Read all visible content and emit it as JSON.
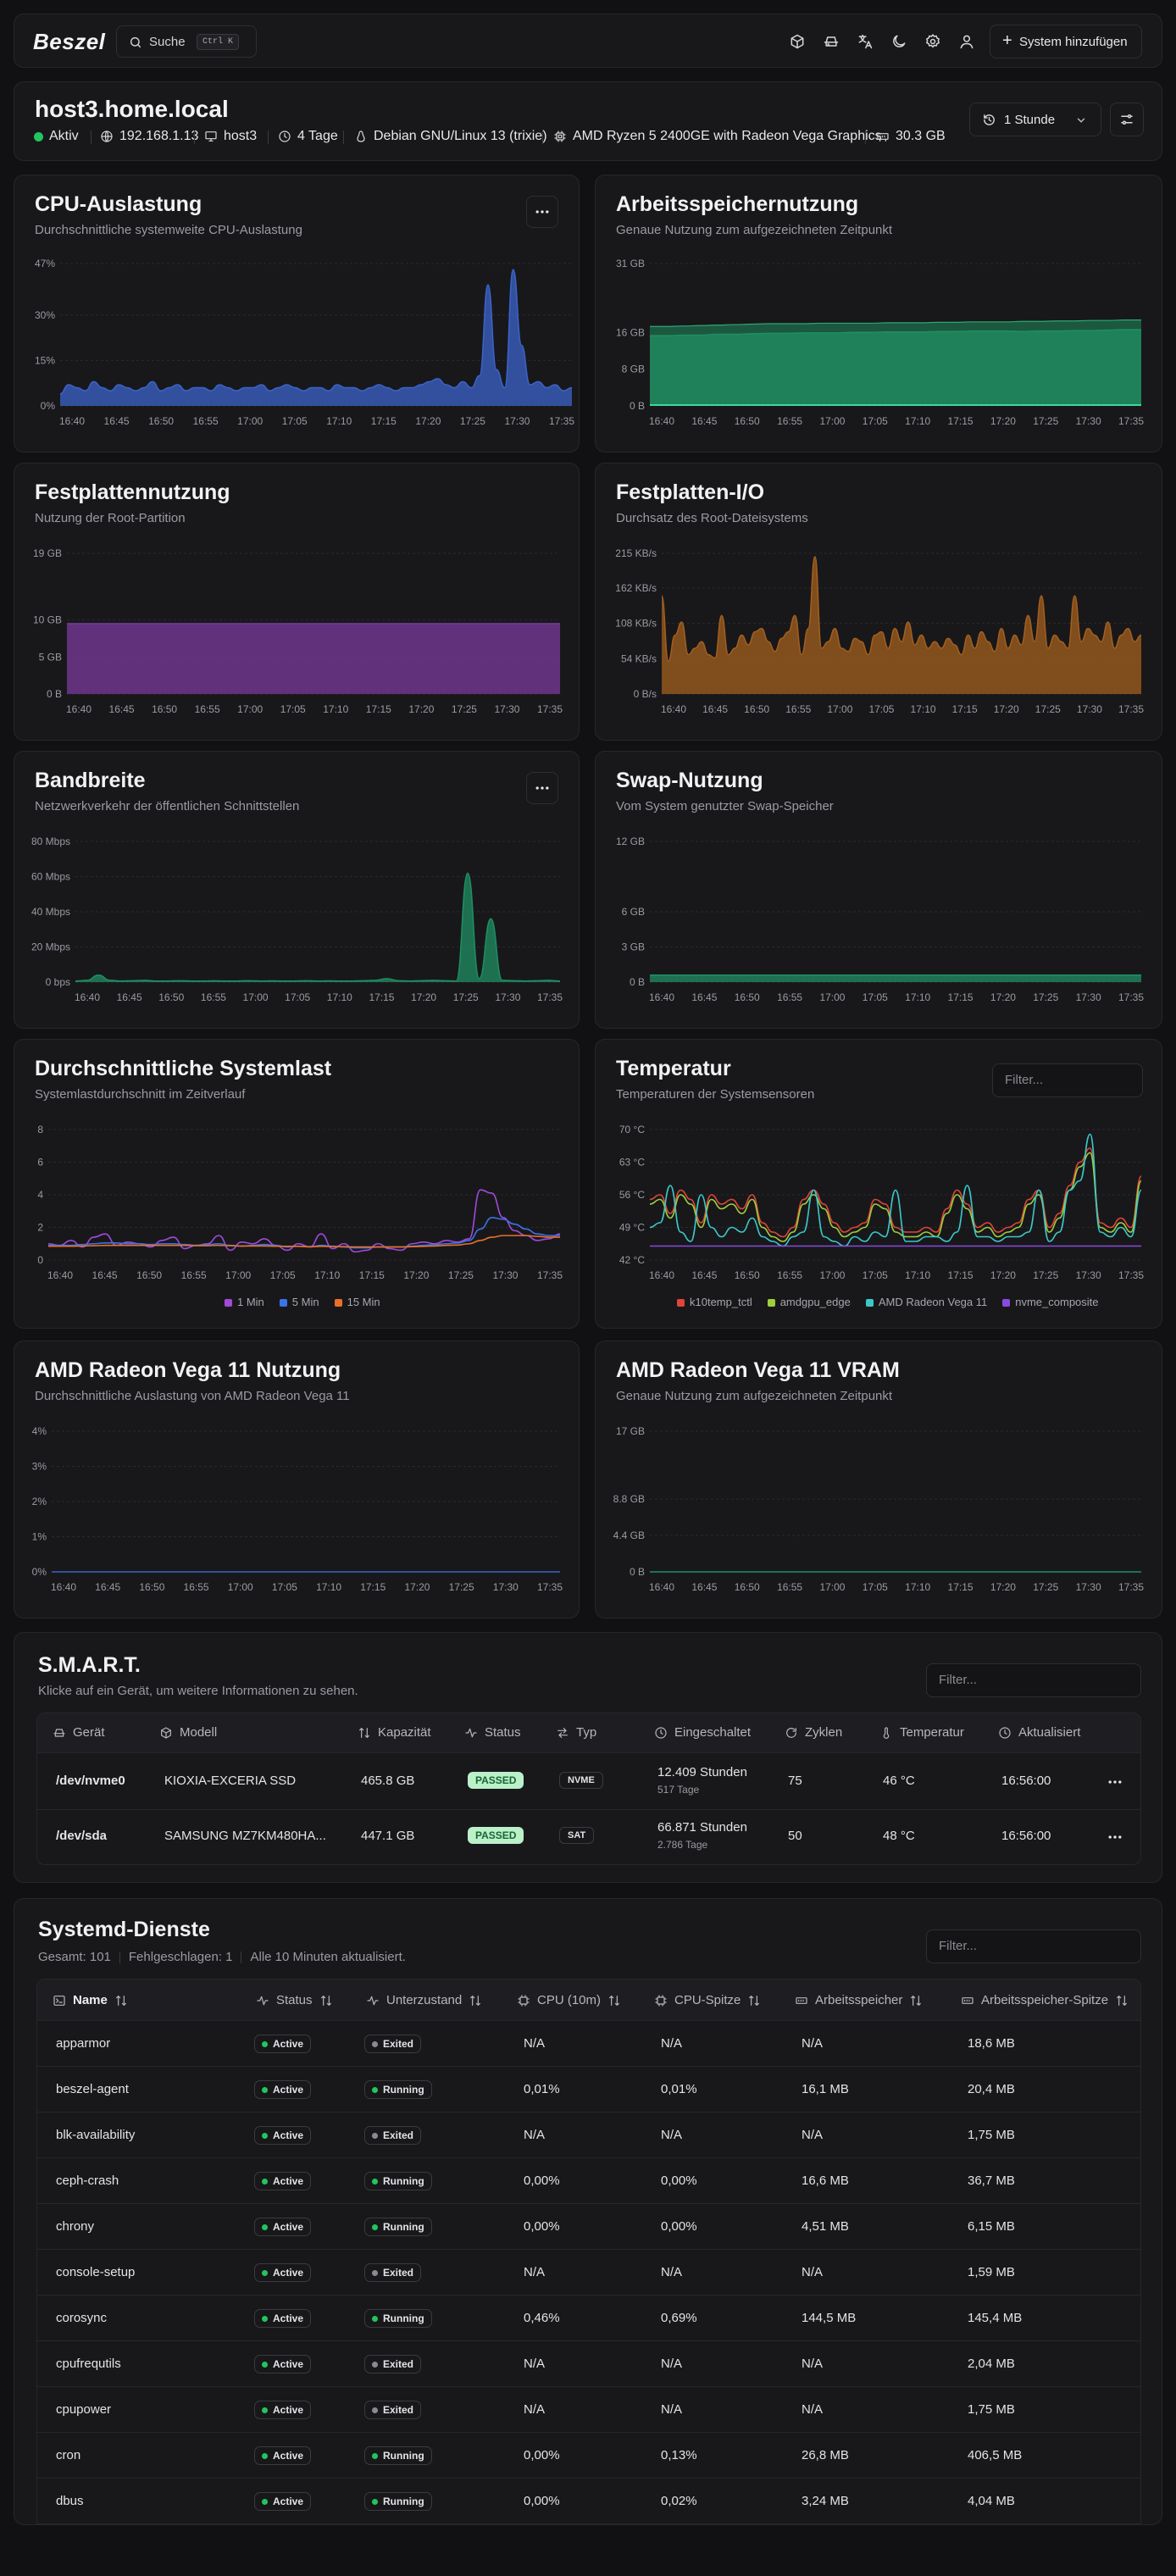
{
  "app": {
    "logo": "Beszel",
    "search_label": "Suche",
    "search_kbd": "Ctrl K",
    "add_system_label": "System hinzufügen"
  },
  "system": {
    "name": "host3.home.local",
    "status": "Aktiv",
    "ip": "192.168.1.13",
    "hostname": "host3",
    "uptime": "4 Tage",
    "os": "Debian GNU/Linux 13 (trixie)",
    "cpu": "AMD Ryzen 5 2400GE with Radeon Vega Graphics",
    "memory": "30.3 GB",
    "time_range": "1 Stunde"
  },
  "x_ticks": [
    "16:40",
    "16:45",
    "16:50",
    "16:55",
    "17:00",
    "17:05",
    "17:10",
    "17:15",
    "17:20",
    "17:25",
    "17:30",
    "17:35"
  ],
  "charts": {
    "cpu": {
      "title": "CPU-Auslastung",
      "subtitle": "Durchschnittliche systemweite CPU-Auslastung"
    },
    "mem": {
      "title": "Arbeitsspeichernutzung",
      "subtitle": "Genaue Nutzung zum aufgezeichneten Zeitpunkt"
    },
    "disk": {
      "title": "Festplattennutzung",
      "subtitle": "Nutzung der Root-Partition"
    },
    "io": {
      "title": "Festplatten-I/O",
      "subtitle": "Durchsatz des Root-Dateisystems"
    },
    "bw": {
      "title": "Bandbreite",
      "subtitle": "Netzwerkverkehr der öffentlichen Schnittstellen"
    },
    "swap": {
      "title": "Swap-Nutzung",
      "subtitle": "Vom System genutzter Swap-Speicher"
    },
    "load": {
      "title": "Durchschnittliche Systemlast",
      "subtitle": "Systemlastdurchschnitt im Zeitverlauf",
      "legend": [
        "1 Min",
        "5 Min",
        "15 Min"
      ]
    },
    "temp": {
      "title": "Temperatur",
      "subtitle": "Temperaturen der Systemsensoren",
      "filter_placeholder": "Filter...",
      "legend": [
        "k10temp_tctl",
        "amdgpu_edge",
        "AMD Radeon Vega 11",
        "nvme_composite"
      ]
    },
    "gpu": {
      "title": "AMD Radeon Vega 11 Nutzung",
      "subtitle": "Durchschnittliche Auslastung von AMD Radeon Vega 11"
    },
    "vram": {
      "title": "AMD Radeon Vega 11 VRAM",
      "subtitle": "Genaue Nutzung zum aufgezeichneten Zeitpunkt"
    }
  },
  "chart_data": [
    {
      "id": "cpu",
      "type": "area",
      "color": "#3b63c9",
      "ylim": [
        0,
        47
      ],
      "y_ticks": [
        "0%",
        "15%",
        "30%",
        "47%"
      ],
      "y_tick_values": [
        0,
        15,
        30,
        47
      ],
      "values": [
        4,
        7,
        6,
        5,
        8,
        6,
        5,
        7,
        6,
        5,
        6,
        8,
        5,
        6,
        7,
        5,
        6,
        6,
        5,
        7,
        6,
        5,
        6,
        6,
        7,
        5,
        6,
        7,
        6,
        5,
        6,
        6,
        5,
        7,
        6,
        6,
        5,
        6,
        7,
        6,
        5,
        6,
        6,
        7,
        8,
        9,
        7,
        6,
        8,
        6,
        10,
        40,
        12,
        6,
        45,
        20,
        7,
        8,
        6,
        7,
        5,
        6
      ]
    },
    {
      "id": "mem",
      "type": "area",
      "color": "#1f8f63",
      "ylim": [
        0,
        31
      ],
      "y_ticks": [
        "0 B",
        "8 GB",
        "16 GB",
        "31 GB"
      ],
      "y_tick_values": [
        0,
        8,
        16,
        31
      ],
      "values": [
        15.3,
        15.3,
        15.4,
        15.4,
        15.6,
        15.6,
        15.7,
        15.8,
        15.8,
        15.9,
        15.9,
        15.9,
        16.0,
        16.0,
        16.1,
        16.1,
        16.1,
        16.2,
        16.2,
        16.3,
        16.3,
        16.3,
        16.2,
        16.3,
        16.3,
        16.4,
        16.4,
        16.5,
        16.6,
        16.6
      ],
      "values_upper": [
        17.3,
        17.3,
        17.4,
        17.5,
        17.6,
        17.7,
        17.8,
        17.9,
        17.9,
        17.9,
        18.0,
        18.0,
        18.0,
        18.0,
        18.1,
        18.1,
        18.1,
        18.2,
        18.2,
        18.3,
        18.3,
        18.3,
        18.4,
        18.4,
        18.5,
        18.5,
        18.6,
        18.6,
        18.7,
        18.7
      ]
    },
    {
      "id": "disk",
      "type": "area",
      "color": "#7a3a9e",
      "ylim": [
        0,
        19
      ],
      "y_ticks": [
        "0 B",
        "5 GB",
        "10 GB",
        "19 GB"
      ],
      "y_tick_values": [
        0,
        5,
        10,
        19
      ],
      "values": [
        9.5,
        9.5,
        9.5,
        9.5,
        9.5,
        9.5,
        9.5,
        9.5,
        9.5,
        9.5
      ]
    },
    {
      "id": "io",
      "type": "area",
      "color": "#a35f1e",
      "ylim": [
        0,
        215
      ],
      "y_ticks": [
        "0 B/s",
        "54 KB/s",
        "108 KB/s",
        "162 KB/s",
        "215 KB/s"
      ],
      "y_tick_values": [
        0,
        54,
        108,
        162,
        215
      ],
      "values": [
        150,
        50,
        90,
        110,
        60,
        70,
        80,
        60,
        55,
        120,
        60,
        70,
        90,
        75,
        95,
        100,
        80,
        65,
        85,
        95,
        120,
        60,
        100,
        210,
        70,
        80,
        100,
        70,
        65,
        85,
        80,
        60,
        90,
        95,
        70,
        100,
        80,
        110,
        75,
        90,
        70,
        80,
        70,
        85,
        75,
        60,
        90,
        70,
        95,
        80,
        65,
        100,
        70,
        90,
        75,
        120,
        80,
        150,
        70,
        90,
        80,
        70,
        150,
        80,
        100,
        90,
        80,
        110,
        70,
        90,
        100,
        80,
        90
      ]
    },
    {
      "id": "bw",
      "type": "area",
      "color": "#1f8f63",
      "ylim": [
        0,
        80
      ],
      "y_ticks": [
        "0 bps",
        "20 Mbps",
        "40 Mbps",
        "60 Mbps",
        "80 Mbps"
      ],
      "y_tick_values": [
        0,
        20,
        40,
        60,
        80
      ],
      "values": [
        0.6,
        1,
        4,
        1,
        0.6,
        0.8,
        1,
        0.6,
        0.6,
        0.8,
        0.6,
        0.6,
        0.7,
        0.6,
        0.6,
        0.8,
        0.6,
        0.7,
        0.6,
        0.6,
        0.8,
        0.6,
        0.7,
        0.6,
        0.6,
        0.8,
        1,
        2,
        0.8,
        0.6,
        0.8,
        1,
        0.8,
        0.6,
        62,
        2,
        36,
        1,
        0.8,
        0.6,
        0.8,
        1,
        0.6
      ]
    },
    {
      "id": "swap",
      "type": "area",
      "color": "#1f8f63",
      "ylim": [
        0,
        12
      ],
      "y_ticks": [
        "0 B",
        "3 GB",
        "6 GB",
        "12 GB"
      ],
      "y_tick_values": [
        0,
        3,
        6,
        12
      ],
      "values": [
        0.6,
        0.6,
        0.6,
        0.6,
        0.6,
        0.6,
        0.6,
        0.6,
        0.6,
        0.6
      ]
    },
    {
      "id": "load",
      "type": "line",
      "ylim": [
        0,
        8
      ],
      "y_ticks": [
        "0",
        "2",
        "4",
        "6",
        "8"
      ],
      "y_tick_values": [
        0,
        2,
        4,
        6,
        8
      ],
      "series": [
        {
          "name": "1 Min",
          "color": "#a04ad9",
          "values": [
            1.0,
            0.9,
            1.2,
            0.8,
            1.4,
            1.6,
            0.9,
            1.1,
            1.0,
            0.8,
            1.2,
            1.4,
            0.7,
            0.9,
            1.0,
            1.5,
            0.6,
            1.1,
            1.0,
            1.3,
            0.9,
            0.6,
            1.0,
            0.8,
            1.6,
            0.7,
            1.0,
            0.5,
            0.6,
            1.0,
            0.7,
            0.6,
            1.0,
            1.1,
            1.0,
            1.2,
            1.1,
            1.3,
            4.3,
            4.1,
            2.6,
            1.8,
            1.5,
            1.2,
            1.3,
            1.6
          ]
        },
        {
          "name": "5 Min",
          "color": "#3b73e8",
          "values": [
            0.9,
            0.9,
            0.9,
            0.95,
            1.0,
            1.05,
            1.05,
            1.0,
            1.0,
            0.95,
            1.0,
            1.0,
            0.95,
            0.9,
            0.95,
            1.0,
            0.9,
            0.85,
            0.9,
            0.95,
            0.9,
            0.8,
            0.85,
            0.8,
            0.9,
            0.85,
            0.8,
            0.75,
            0.75,
            0.8,
            0.8,
            0.8,
            0.85,
            0.9,
            0.95,
            1.0,
            1.05,
            1.2,
            1.9,
            2.6,
            2.5,
            2.2,
            1.9,
            1.6,
            1.5,
            1.5
          ]
        },
        {
          "name": "15 Min",
          "color": "#e8712a",
          "values": [
            0.85,
            0.85,
            0.85,
            0.86,
            0.88,
            0.9,
            0.9,
            0.9,
            0.9,
            0.9,
            0.9,
            0.9,
            0.9,
            0.88,
            0.88,
            0.9,
            0.88,
            0.86,
            0.86,
            0.86,
            0.85,
            0.84,
            0.84,
            0.82,
            0.84,
            0.83,
            0.82,
            0.8,
            0.8,
            0.8,
            0.8,
            0.8,
            0.82,
            0.84,
            0.86,
            0.9,
            0.92,
            1.0,
            1.2,
            1.4,
            1.5,
            1.5,
            1.5,
            1.45,
            1.4,
            1.4
          ]
        }
      ]
    },
    {
      "id": "temp",
      "type": "line",
      "ylim": [
        42,
        70
      ],
      "y_ticks": [
        "42 °C",
        "49 °C",
        "56 °C",
        "63 °C",
        "70 °C"
      ],
      "y_tick_values": [
        42,
        49,
        56,
        63,
        70
      ],
      "series": [
        {
          "name": "k10temp_tctl",
          "color": "#e0453a",
          "values": [
            55,
            56,
            52,
            57,
            55,
            50,
            56,
            54,
            55,
            53,
            56,
            50,
            48,
            47,
            49,
            55,
            57,
            54,
            50,
            48,
            49,
            50,
            55,
            54,
            49,
            48,
            48,
            49,
            48,
            53,
            57,
            54,
            49,
            50,
            48,
            49,
            50,
            55,
            57,
            49,
            52,
            58,
            63,
            66,
            50,
            49,
            51,
            49,
            60
          ]
        },
        {
          "name": "amdgpu_edge",
          "color": "#9fce3a",
          "values": [
            54,
            55,
            51,
            56,
            54,
            49,
            55,
            53,
            54,
            52,
            55,
            49,
            47,
            46,
            48,
            54,
            56,
            53,
            49,
            47,
            48,
            49,
            54,
            53,
            48,
            47,
            47,
            48,
            47,
            52,
            56,
            53,
            48,
            49,
            47,
            48,
            49,
            54,
            56,
            48,
            51,
            57,
            62,
            65,
            49,
            48,
            50,
            48,
            59
          ]
        },
        {
          "name": "AMD Radeon Vega 11",
          "color": "#3cc8c8",
          "values": [
            49,
            50,
            58,
            48,
            46,
            56,
            49,
            47,
            49,
            48,
            51,
            47,
            46,
            45,
            47,
            48,
            57,
            47,
            46,
            45,
            47,
            46,
            48,
            47,
            57,
            46,
            46,
            47,
            47,
            46,
            48,
            58,
            47,
            47,
            46,
            47,
            47,
            48,
            57,
            46,
            48,
            57,
            59,
            69,
            48,
            47,
            49,
            47,
            57
          ]
        },
        {
          "name": "nvme_composite",
          "color": "#8a4ae0",
          "values": [
            45,
            45,
            45,
            45,
            45,
            45,
            45,
            45,
            45,
            45,
            45,
            45,
            45,
            45,
            45,
            45,
            45,
            45,
            45,
            45,
            45,
            45,
            45,
            45,
            45,
            45,
            45,
            45,
            45,
            45,
            45,
            45,
            45,
            45,
            45,
            45,
            45,
            45,
            45,
            45,
            45,
            45,
            45,
            45,
            45,
            45,
            45,
            45,
            45
          ]
        }
      ]
    },
    {
      "id": "gpu",
      "type": "area",
      "color": "#3b63c9",
      "ylim": [
        0,
        4
      ],
      "y_ticks": [
        "0%",
        "1%",
        "2%",
        "3%",
        "4%"
      ],
      "y_tick_values": [
        0,
        1,
        2,
        3,
        4
      ],
      "values": [
        0,
        0,
        0,
        0,
        0,
        0
      ]
    },
    {
      "id": "vram",
      "type": "area",
      "color": "#1f8f63",
      "ylim": [
        0,
        17
      ],
      "y_ticks": [
        "0 B",
        "4.4 GB",
        "8.8 GB",
        "17 GB"
      ],
      "y_tick_values": [
        0,
        4.4,
        8.8,
        17
      ],
      "values": [
        0,
        0,
        0,
        0,
        0,
        0
      ]
    }
  ],
  "smart": {
    "title": "S.M.A.R.T.",
    "subtitle": "Klicke auf ein Gerät, um weitere Informationen zu sehen.",
    "filter_placeholder": "Filter...",
    "headers": [
      "Gerät",
      "Modell",
      "Kapazität",
      "Status",
      "Typ",
      "Eingeschaltet",
      "Zyklen",
      "Temperatur",
      "Aktualisiert"
    ],
    "rows": [
      {
        "device": "/dev/nvme0",
        "model": "KIOXIA-EXCERIA SSD",
        "capacity": "465.8 GB",
        "status": "PASSED",
        "type": "NVME",
        "on_hours": "12.409 Stunden",
        "on_days": "517 Tage",
        "cycles": "75",
        "temp": "46 °C",
        "updated": "16:56:00"
      },
      {
        "device": "/dev/sda",
        "model": "SAMSUNG MZ7KM480HA...",
        "capacity": "447.1 GB",
        "status": "PASSED",
        "type": "SAT",
        "on_hours": "66.871 Stunden",
        "on_days": "2.786 Tage",
        "cycles": "50",
        "temp": "48 °C",
        "updated": "16:56:00"
      }
    ]
  },
  "systemd": {
    "title": "Systemd-Dienste",
    "summary_total": "Gesamt: 101",
    "summary_failed": "Fehlgeschlagen: 1",
    "summary_updated": "Alle 10 Minuten aktualisiert.",
    "filter_placeholder": "Filter...",
    "headers": [
      "Name",
      "Status",
      "Unterzustand",
      "CPU (10m)",
      "CPU-Spitze",
      "Arbeitsspeicher",
      "Arbeitsspeicher-Spitze"
    ],
    "rows": [
      {
        "name": "apparmor",
        "status": "Active",
        "sub": "Exited",
        "cpu": "N/A",
        "cpu_peak": "N/A",
        "mem": "N/A",
        "mem_peak": "18,6 MB"
      },
      {
        "name": "beszel-agent",
        "status": "Active",
        "sub": "Running",
        "cpu": "0,01%",
        "cpu_peak": "0,01%",
        "mem": "16,1 MB",
        "mem_peak": "20,4 MB"
      },
      {
        "name": "blk-availability",
        "status": "Active",
        "sub": "Exited",
        "cpu": "N/A",
        "cpu_peak": "N/A",
        "mem": "N/A",
        "mem_peak": "1,75 MB"
      },
      {
        "name": "ceph-crash",
        "status": "Active",
        "sub": "Running",
        "cpu": "0,00%",
        "cpu_peak": "0,00%",
        "mem": "16,6 MB",
        "mem_peak": "36,7 MB"
      },
      {
        "name": "chrony",
        "status": "Active",
        "sub": "Running",
        "cpu": "0,00%",
        "cpu_peak": "0,00%",
        "mem": "4,51 MB",
        "mem_peak": "6,15 MB"
      },
      {
        "name": "console-setup",
        "status": "Active",
        "sub": "Exited",
        "cpu": "N/A",
        "cpu_peak": "N/A",
        "mem": "N/A",
        "mem_peak": "1,59 MB"
      },
      {
        "name": "corosync",
        "status": "Active",
        "sub": "Running",
        "cpu": "0,46%",
        "cpu_peak": "0,69%",
        "mem": "144,5 MB",
        "mem_peak": "145,4 MB"
      },
      {
        "name": "cpufrequtils",
        "status": "Active",
        "sub": "Exited",
        "cpu": "N/A",
        "cpu_peak": "N/A",
        "mem": "N/A",
        "mem_peak": "2,04 MB"
      },
      {
        "name": "cpupower",
        "status": "Active",
        "sub": "Exited",
        "cpu": "N/A",
        "cpu_peak": "N/A",
        "mem": "N/A",
        "mem_peak": "1,75 MB"
      },
      {
        "name": "cron",
        "status": "Active",
        "sub": "Running",
        "cpu": "0,00%",
        "cpu_peak": "0,13%",
        "mem": "26,8 MB",
        "mem_peak": "406,5 MB"
      },
      {
        "name": "dbus",
        "status": "Active",
        "sub": "Running",
        "cpu": "0,00%",
        "cpu_peak": "0,02%",
        "mem": "3,24 MB",
        "mem_peak": "4,04 MB"
      }
    ]
  }
}
